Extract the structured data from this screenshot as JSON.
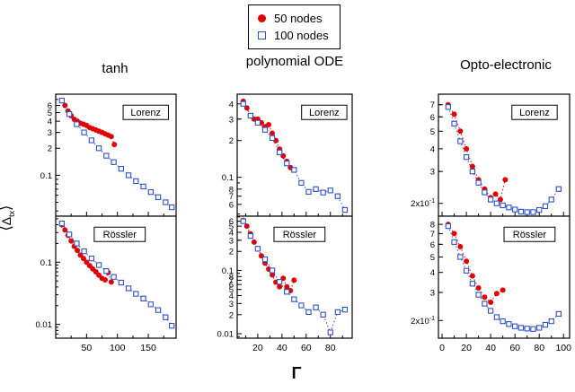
{
  "figure": {
    "legend": {
      "items": [
        {
          "label": "50 nodes",
          "marker": "filled-circle",
          "color": "#e00000"
        },
        {
          "label": "100 nodes",
          "marker": "open-square",
          "color": "#3050c8"
        }
      ]
    },
    "column_titles": [
      "tanh",
      "polynomial ODE",
      "Opto-electronic"
    ],
    "ylabel": {
      "open": "⟨",
      "symbol": "Δ",
      "sub": "tx",
      "close": "⟩"
    },
    "xlabel": "Γ"
  },
  "chart_data": [
    {
      "type": "scatter",
      "column": "tanh",
      "label": "Lorenz",
      "xlim": [
        0,
        195
      ],
      "xticks": [
        50,
        100,
        150
      ],
      "show_xtick_labels": false,
      "ylim": [
        0.035,
        0.8
      ],
      "yscale": "log",
      "yticks": [
        {
          "v": 0.6,
          "l": "6"
        },
        {
          "v": 0.5,
          "l": "5"
        },
        {
          "v": 0.4,
          "l": "4"
        },
        {
          "v": 0.3,
          "l": "3"
        },
        {
          "v": 0.2,
          "l": "2"
        },
        {
          "v": 0.1,
          "l": "0.1"
        }
      ],
      "series": [
        {
          "name": "50 nodes",
          "marker": "circle",
          "color": "#e00000",
          "x": [
            10,
            15,
            20,
            25,
            30,
            35,
            40,
            45,
            50,
            55,
            60,
            65,
            70,
            75,
            80,
            85,
            90,
            95
          ],
          "y": [
            0.68,
            0.6,
            0.52,
            0.46,
            0.42,
            0.4,
            0.38,
            0.37,
            0.36,
            0.34,
            0.33,
            0.32,
            0.31,
            0.3,
            0.29,
            0.28,
            0.27,
            0.22
          ]
        },
        {
          "name": "100 nodes",
          "marker": "square",
          "color": "#3050c8",
          "x": [
            10,
            22,
            34,
            46,
            58,
            70,
            82,
            94,
            106,
            118,
            130,
            142,
            154,
            166,
            178,
            188
          ],
          "y": [
            0.68,
            0.48,
            0.37,
            0.3,
            0.245,
            0.2,
            0.165,
            0.14,
            0.118,
            0.1,
            0.086,
            0.075,
            0.065,
            0.057,
            0.05,
            0.044
          ]
        }
      ]
    },
    {
      "type": "scatter",
      "column": "tanh",
      "label": "Rössler",
      "xlim": [
        0,
        195
      ],
      "xticks": [
        50,
        100,
        150
      ],
      "show_xtick_labels": true,
      "ylim": [
        0.006,
        0.55
      ],
      "yscale": "log",
      "yticks": [
        {
          "v": 0.1,
          "l": "0.1"
        },
        {
          "v": 0.01,
          "l": "0.01"
        }
      ],
      "series": [
        {
          "name": "50 nodes",
          "marker": "circle",
          "color": "#e00000",
          "x": [
            10,
            15,
            20,
            25,
            30,
            35,
            40,
            45,
            50,
            55,
            60,
            65,
            70,
            75,
            80,
            85,
            90
          ],
          "y": [
            0.4,
            0.33,
            0.27,
            0.22,
            0.18,
            0.155,
            0.13,
            0.115,
            0.1,
            0.088,
            0.078,
            0.07,
            0.062,
            0.055,
            0.052,
            0.068,
            0.048
          ]
        },
        {
          "name": "100 nodes",
          "marker": "square",
          "color": "#3050c8",
          "x": [
            10,
            22,
            34,
            46,
            58,
            70,
            82,
            94,
            106,
            118,
            130,
            142,
            154,
            166,
            178,
            188
          ],
          "y": [
            0.42,
            0.28,
            0.2,
            0.15,
            0.115,
            0.09,
            0.072,
            0.058,
            0.047,
            0.038,
            0.031,
            0.026,
            0.021,
            0.017,
            0.013,
            0.0095
          ]
        }
      ]
    },
    {
      "type": "scatter",
      "column": "polynomial ODE",
      "label": "Lorenz",
      "xlim": [
        3,
        98
      ],
      "xticks": [
        20,
        40,
        60,
        80
      ],
      "show_xtick_labels": false,
      "ylim": [
        0.048,
        0.48
      ],
      "yscale": "log",
      "yticks": [
        {
          "v": 0.4,
          "l": "4"
        },
        {
          "v": 0.3,
          "l": "3"
        },
        {
          "v": 0.2,
          "l": "2"
        },
        {
          "v": 0.1,
          "l": "0.1"
        },
        {
          "v": 0.08,
          "l": "8"
        },
        {
          "v": 0.07,
          "l": "7"
        },
        {
          "v": 0.06,
          "l": "6"
        }
      ],
      "series": [
        {
          "name": "50 nodes",
          "marker": "circle",
          "color": "#e00000",
          "x": [
            8,
            11,
            14,
            17,
            20,
            23,
            26,
            29,
            32,
            35,
            38,
            41,
            44,
            47,
            50
          ],
          "y": [
            0.42,
            0.37,
            0.32,
            0.3,
            0.3,
            0.28,
            0.26,
            0.27,
            0.23,
            0.2,
            0.17,
            0.15,
            0.135,
            0.12,
            0.115
          ]
        },
        {
          "name": "100 nodes",
          "marker": "square",
          "color": "#3050c8",
          "x": [
            8,
            14,
            20,
            26,
            32,
            38,
            44,
            50,
            56,
            62,
            68,
            74,
            80,
            86,
            92
          ],
          "y": [
            0.4,
            0.32,
            0.28,
            0.245,
            0.21,
            0.16,
            0.13,
            0.115,
            0.09,
            0.076,
            0.08,
            0.075,
            0.078,
            0.07,
            0.054
          ]
        }
      ]
    },
    {
      "type": "scatter",
      "column": "polynomial ODE",
      "label": "Rössler",
      "xlim": [
        3,
        98
      ],
      "xticks": [
        20,
        40,
        60,
        80
      ],
      "show_xtick_labels": true,
      "ylim": [
        0.0085,
        0.72
      ],
      "yscale": "log",
      "yticks": [
        {
          "v": 0.6,
          "l": "6"
        },
        {
          "v": 0.5,
          "l": "5"
        },
        {
          "v": 0.4,
          "l": "4"
        },
        {
          "v": 0.3,
          "l": "3"
        },
        {
          "v": 0.2,
          "l": "2"
        },
        {
          "v": 0.1,
          "l": "0.1"
        },
        {
          "v": 0.08,
          "l": "8"
        },
        {
          "v": 0.07,
          "l": "7"
        },
        {
          "v": 0.06,
          "l": "6"
        },
        {
          "v": 0.05,
          "l": "5"
        },
        {
          "v": 0.04,
          "l": "4"
        },
        {
          "v": 0.03,
          "l": "3"
        },
        {
          "v": 0.02,
          "l": "2"
        },
        {
          "v": 0.01,
          "l": "0.01"
        }
      ],
      "series": [
        {
          "name": "50 nodes",
          "marker": "circle",
          "color": "#e00000",
          "x": [
            8,
            11,
            14,
            17,
            20,
            23,
            26,
            29,
            32,
            35,
            38,
            41,
            44,
            47,
            50
          ],
          "y": [
            0.62,
            0.5,
            0.38,
            0.28,
            0.22,
            0.17,
            0.13,
            0.105,
            0.085,
            0.065,
            0.055,
            0.075,
            0.055,
            0.048,
            0.07
          ]
        },
        {
          "name": "100 nodes",
          "marker": "square",
          "color": "#3050c8",
          "x": [
            8,
            14,
            20,
            26,
            32,
            38,
            44,
            50,
            56,
            62,
            68,
            74,
            80,
            86,
            92
          ],
          "y": [
            0.6,
            0.35,
            0.22,
            0.15,
            0.1,
            0.066,
            0.046,
            0.035,
            0.028,
            0.022,
            0.026,
            0.02,
            0.0105,
            0.022,
            0.024
          ]
        }
      ]
    },
    {
      "type": "scatter",
      "column": "Opto-electronic",
      "label": "Lorenz",
      "xlim": [
        -3,
        105
      ],
      "xticks": [
        0,
        20,
        40,
        60,
        80,
        100
      ],
      "show_xtick_labels": false,
      "ylim": [
        0.17,
        0.8
      ],
      "yscale": "log",
      "yticks": [
        {
          "v": 0.7,
          "l": "7"
        },
        {
          "v": 0.6,
          "l": "6"
        },
        {
          "v": 0.5,
          "l": "5"
        },
        {
          "v": 0.4,
          "l": "4"
        },
        {
          "v": 0.3,
          "l": "3"
        },
        {
          "v": 0.2,
          "l": "2x10^-1"
        }
      ],
      "series": [
        {
          "name": "50 nodes",
          "marker": "circle",
          "color": "#e00000",
          "x": [
            5,
            10,
            15,
            20,
            25,
            30,
            35,
            40,
            44,
            48,
            52
          ],
          "y": [
            0.7,
            0.62,
            0.5,
            0.4,
            0.32,
            0.27,
            0.24,
            0.215,
            0.225,
            0.21,
            0.27
          ]
        },
        {
          "name": "100 nodes",
          "marker": "square",
          "color": "#3050c8",
          "x": [
            5,
            10,
            15,
            20,
            25,
            30,
            35,
            40,
            45,
            50,
            55,
            60,
            65,
            70,
            75,
            80,
            85,
            90,
            96
          ],
          "y": [
            0.68,
            0.55,
            0.44,
            0.36,
            0.3,
            0.26,
            0.23,
            0.21,
            0.2,
            0.195,
            0.19,
            0.185,
            0.18,
            0.179,
            0.179,
            0.184,
            0.193,
            0.21,
            0.24
          ]
        }
      ]
    },
    {
      "type": "scatter",
      "column": "Opto-electronic",
      "label": "Rössler",
      "xlim": [
        -3,
        105
      ],
      "xticks": [
        0,
        20,
        40,
        60,
        80,
        100
      ],
      "show_xtick_labels": true,
      "ylim": [
        0.155,
        0.9
      ],
      "yscale": "log",
      "yticks": [
        {
          "v": 0.8,
          "l": "8"
        },
        {
          "v": 0.7,
          "l": "7"
        },
        {
          "v": 0.6,
          "l": "6"
        },
        {
          "v": 0.5,
          "l": "5"
        },
        {
          "v": 0.4,
          "l": "4"
        },
        {
          "v": 0.3,
          "l": "3"
        },
        {
          "v": 0.2,
          "l": "2x10^-1"
        }
      ],
      "series": [
        {
          "name": "50 nodes",
          "marker": "circle",
          "color": "#e00000",
          "x": [
            5,
            10,
            15,
            20,
            25,
            30,
            35,
            40,
            45,
            50
          ],
          "y": [
            0.8,
            0.7,
            0.58,
            0.47,
            0.38,
            0.32,
            0.28,
            0.26,
            0.295,
            0.31
          ]
        },
        {
          "name": "100 nodes",
          "marker": "square",
          "color": "#3050c8",
          "x": [
            5,
            10,
            15,
            20,
            25,
            30,
            35,
            40,
            45,
            50,
            55,
            60,
            65,
            70,
            75,
            80,
            85,
            90,
            96
          ],
          "y": [
            0.78,
            0.62,
            0.5,
            0.41,
            0.34,
            0.29,
            0.255,
            0.23,
            0.21,
            0.198,
            0.19,
            0.184,
            0.18,
            0.178,
            0.177,
            0.18,
            0.188,
            0.198,
            0.22
          ]
        }
      ]
    }
  ]
}
